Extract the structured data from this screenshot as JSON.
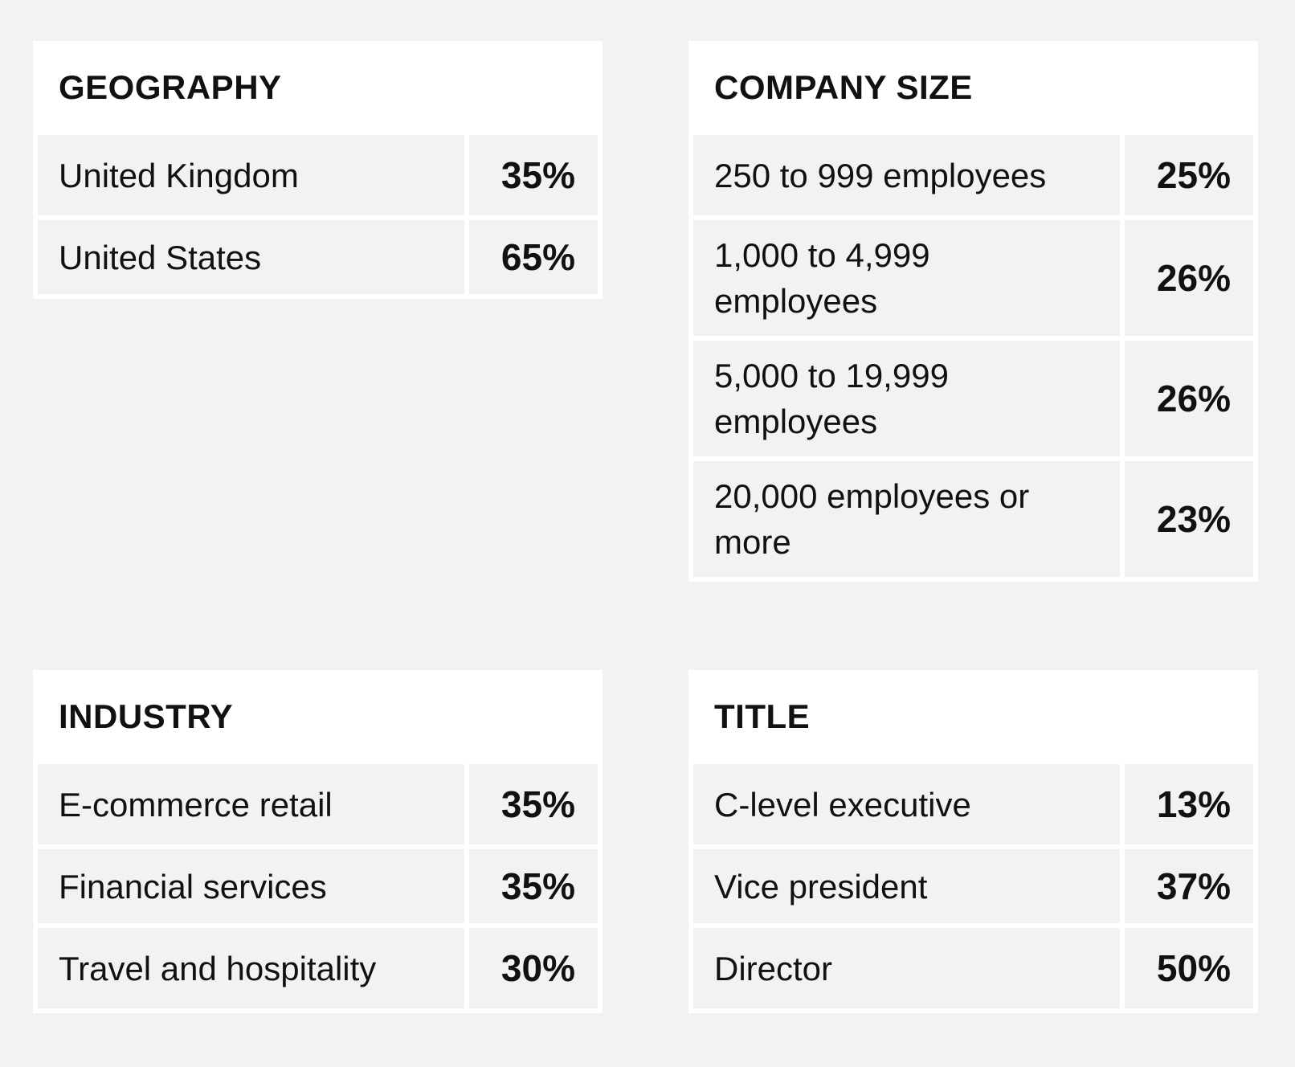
{
  "geography": {
    "title": "GEOGRAPHY",
    "rows": [
      {
        "label": "United Kingdom",
        "value": "35%"
      },
      {
        "label": "United States",
        "value": "65%"
      }
    ]
  },
  "company_size": {
    "title": "COMPANY SIZE",
    "rows": [
      {
        "label": "250 to 999 employees",
        "value": "25%"
      },
      {
        "label": "1,000 to 4,999 employees",
        "value": "26%"
      },
      {
        "label": "5,000 to 19,999 employees",
        "value": "26%"
      },
      {
        "label": "20,000 employees or more",
        "value": "23%"
      }
    ]
  },
  "industry": {
    "title": "INDUSTRY",
    "rows": [
      {
        "label": "E-commerce retail",
        "value": "35%"
      },
      {
        "label": "Financial services",
        "value": "35%"
      },
      {
        "label": "Travel and hospitality",
        "value": "30%"
      }
    ]
  },
  "title_section": {
    "title": "TITLE",
    "rows": [
      {
        "label": "C-level executive",
        "value": "13%"
      },
      {
        "label": "Vice president",
        "value": "37%"
      },
      {
        "label": "Director",
        "value": "50%"
      }
    ]
  }
}
